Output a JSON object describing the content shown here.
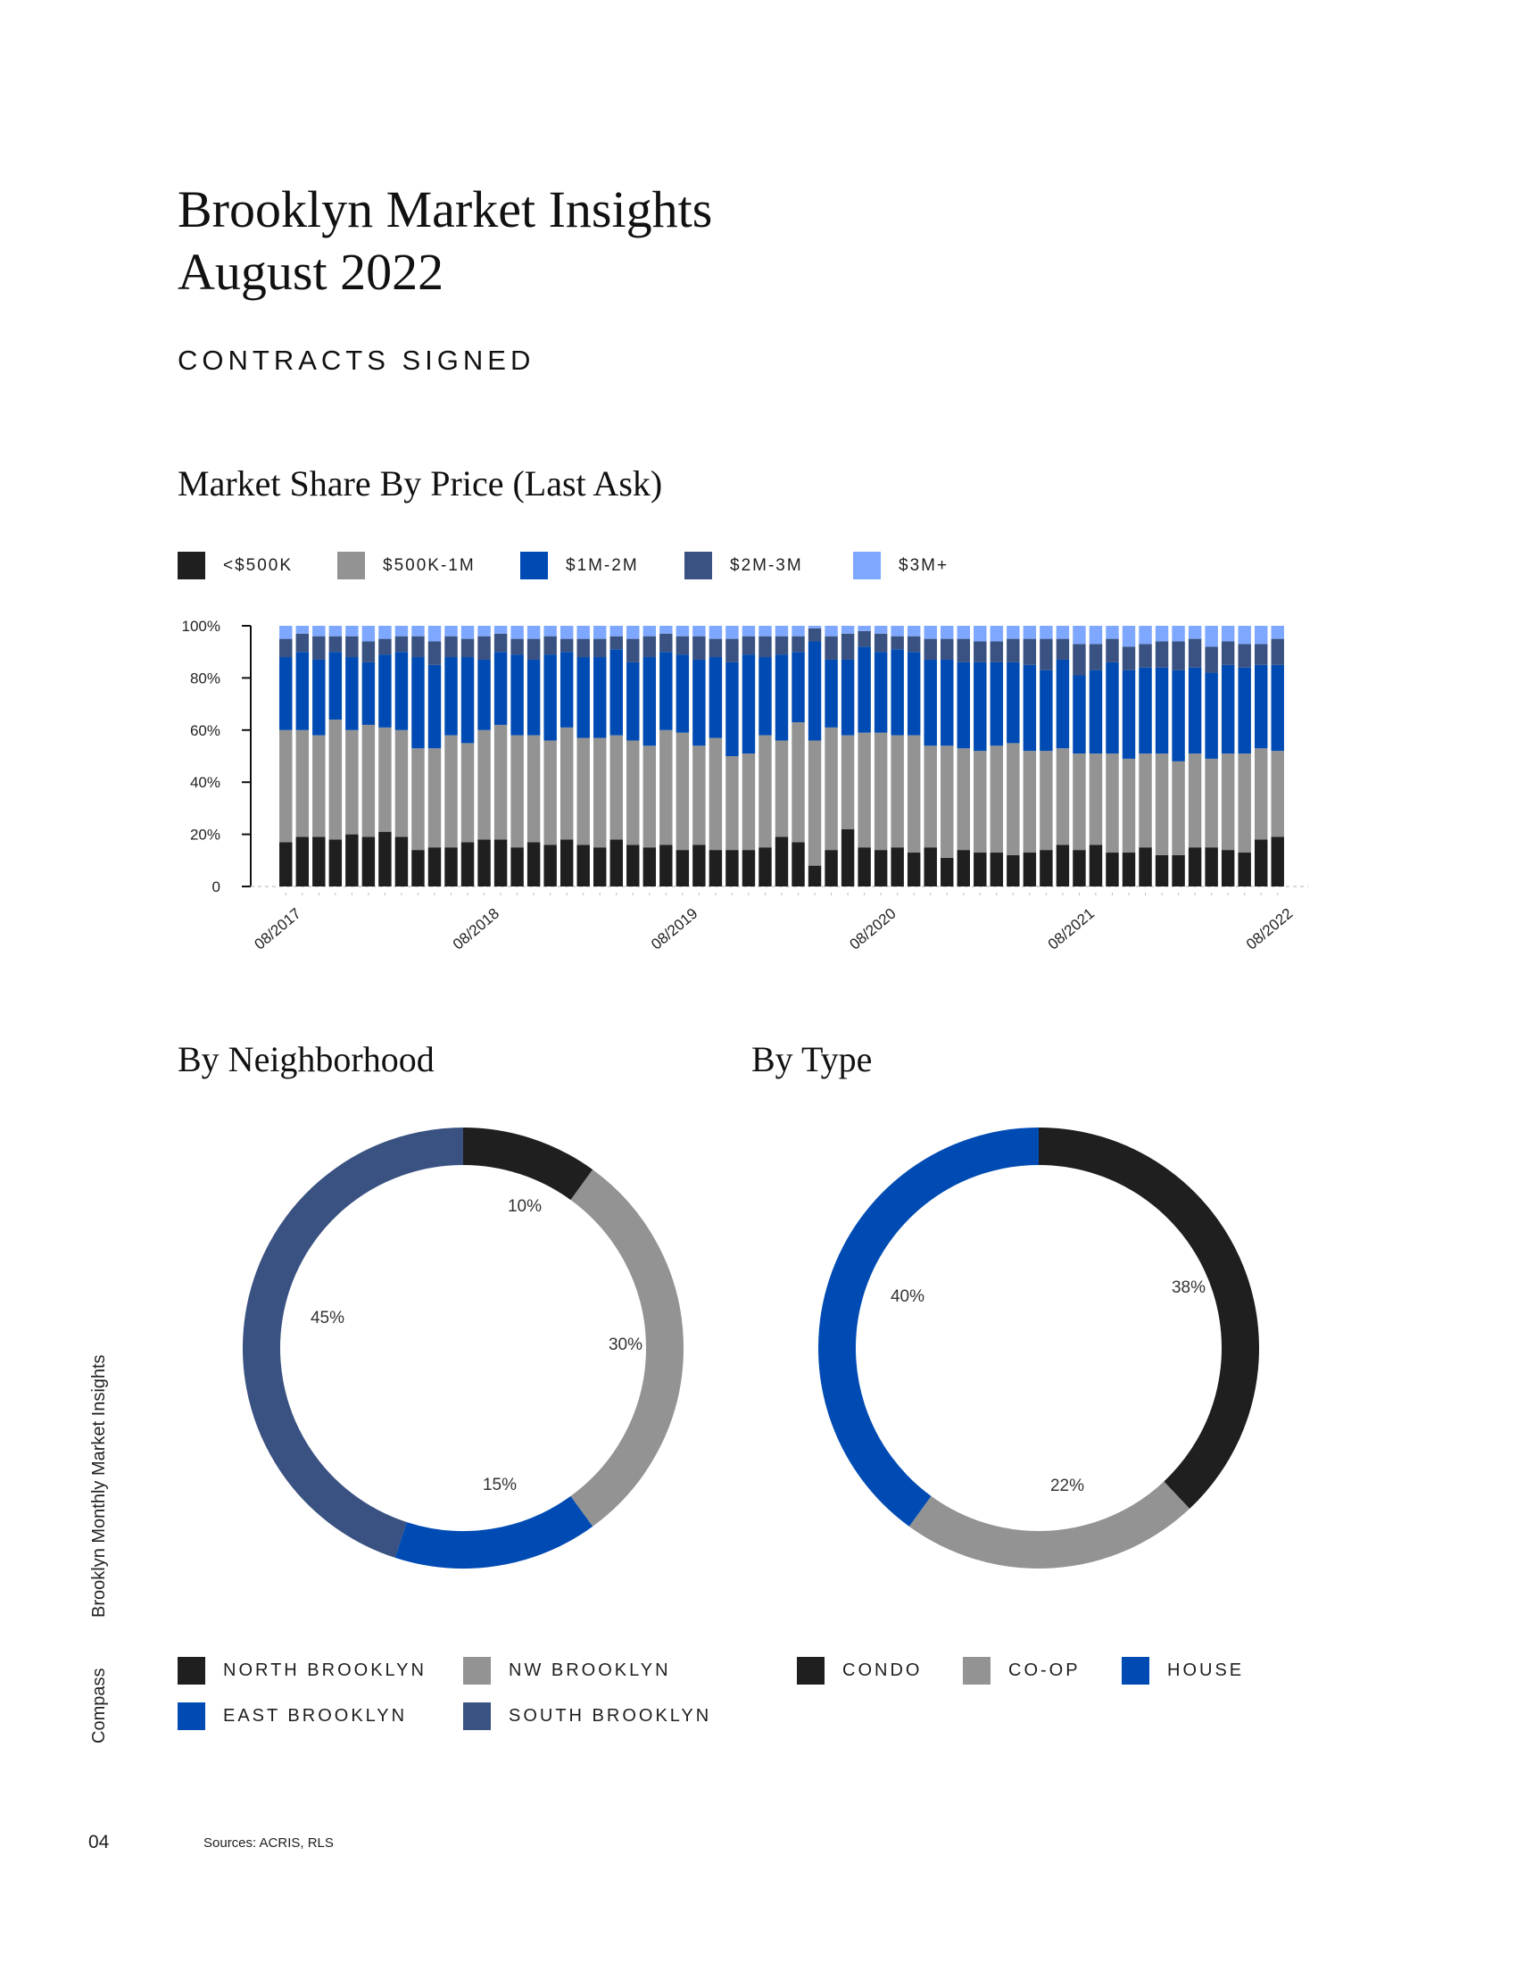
{
  "header": {
    "title_line1": "Brooklyn Market Insights",
    "title_line2": "August 2022",
    "section": "CONTRACTS SIGNED"
  },
  "sidebar": {
    "publication": "Brooklyn Monthly Market Insights",
    "brand": "Compass"
  },
  "footer": {
    "page_number": "04",
    "sources": "Sources: ACRIS, RLS"
  },
  "chart_data": [
    {
      "type": "bar",
      "stacked": true,
      "title": "Market Share By Price (Last Ask)",
      "ylim": [
        0,
        100
      ],
      "y_ticks": [
        "0",
        "20%",
        "40%",
        "60%",
        "80%",
        "100%"
      ],
      "x_tick_labels": [
        "08/2017",
        "08/2018",
        "08/2019",
        "08/2020",
        "08/2021",
        "08/2022"
      ],
      "x_range": [
        "08/2017",
        "08/2022"
      ],
      "grid": false,
      "legend_placement": "top",
      "series": [
        {
          "name": "<$500K",
          "color": "#1f1f1f",
          "values": [
            17,
            19,
            19,
            18,
            20,
            19,
            21,
            19,
            14,
            15,
            15,
            17,
            18,
            18,
            15,
            17,
            16,
            18,
            16,
            15,
            18,
            16,
            15,
            16,
            14,
            16,
            14,
            14,
            14,
            15,
            19,
            17,
            8,
            14,
            22,
            15,
            14,
            15,
            13,
            15,
            11,
            14,
            13,
            13,
            12,
            13,
            14,
            16,
            14,
            16,
            13,
            13,
            15,
            12,
            12,
            15,
            15,
            14,
            13,
            18,
            19
          ]
        },
        {
          "name": "$500K-1M",
          "color": "#939393",
          "values": [
            43,
            41,
            39,
            46,
            40,
            43,
            40,
            41,
            39,
            38,
            43,
            38,
            42,
            44,
            43,
            41,
            40,
            43,
            41,
            42,
            40,
            40,
            39,
            44,
            45,
            38,
            43,
            36,
            37,
            43,
            37,
            46,
            48,
            47,
            36,
            44,
            45,
            43,
            45,
            39,
            43,
            39,
            39,
            41,
            43,
            39,
            38,
            37,
            37,
            35,
            38,
            36,
            36,
            39,
            36,
            36,
            34,
            37,
            38,
            35,
            33
          ]
        },
        {
          "name": "$1M-2M",
          "color": "#004bb3",
          "values": [
            28,
            30,
            29,
            26,
            28,
            24,
            28,
            30,
            35,
            32,
            30,
            33,
            27,
            28,
            31,
            29,
            33,
            29,
            31,
            31,
            33,
            30,
            34,
            30,
            30,
            33,
            31,
            36,
            38,
            30,
            33,
            27,
            38,
            26,
            29,
            33,
            31,
            33,
            32,
            33,
            33,
            33,
            34,
            32,
            31,
            33,
            31,
            34,
            30,
            32,
            35,
            34,
            33,
            33,
            35,
            33,
            33,
            34,
            33,
            32,
            33
          ]
        },
        {
          "name": "$2M-3M",
          "color": "#3a5281",
          "values": [
            7,
            7,
            9,
            6,
            8,
            8,
            6,
            6,
            8,
            9,
            8,
            7,
            9,
            7,
            6,
            8,
            7,
            5,
            7,
            7,
            5,
            9,
            8,
            7,
            7,
            9,
            7,
            9,
            7,
            8,
            7,
            6,
            5,
            9,
            10,
            6,
            7,
            5,
            6,
            8,
            8,
            9,
            8,
            8,
            9,
            10,
            12,
            8,
            12,
            10,
            9,
            9,
            9,
            10,
            11,
            11,
            10,
            9,
            9,
            8,
            10
          ]
        },
        {
          "name": "$3M+",
          "color": "#7ea8ff",
          "values": [
            5,
            3,
            4,
            4,
            4,
            6,
            5,
            4,
            4,
            6,
            4,
            5,
            4,
            3,
            5,
            5,
            4,
            5,
            5,
            5,
            4,
            5,
            4,
            3,
            4,
            4,
            5,
            5,
            4,
            4,
            4,
            4,
            1,
            4,
            3,
            2,
            3,
            4,
            4,
            5,
            5,
            5,
            6,
            6,
            5,
            5,
            5,
            5,
            7,
            7,
            5,
            8,
            7,
            6,
            6,
            5,
            8,
            6,
            7,
            7,
            5
          ]
        }
      ]
    },
    {
      "type": "pie",
      "donut": true,
      "title": "By Neighborhood",
      "legend_placement": "bottom",
      "slices": [
        {
          "name": "NORTH BROOKLYN",
          "value": 10,
          "label": "10%",
          "color": "#1f1f1f"
        },
        {
          "name": "NW BROOKLYN",
          "value": 30,
          "label": "30%",
          "color": "#939393"
        },
        {
          "name": "EAST BROOKLYN",
          "value": 15,
          "label": "15%",
          "color": "#004bb3"
        },
        {
          "name": "SOUTH BROOKLYN",
          "value": 45,
          "label": "45%",
          "color": "#3a5281"
        }
      ]
    },
    {
      "type": "pie",
      "donut": true,
      "title": "By Type",
      "legend_placement": "bottom",
      "slices": [
        {
          "name": "CONDO",
          "value": 38,
          "label": "38%",
          "color": "#1f1f1f"
        },
        {
          "name": "CO-OP",
          "value": 22,
          "label": "22%",
          "color": "#939393"
        },
        {
          "name": "HOUSE",
          "value": 40,
          "label": "40%",
          "color": "#004bb3"
        }
      ]
    }
  ]
}
